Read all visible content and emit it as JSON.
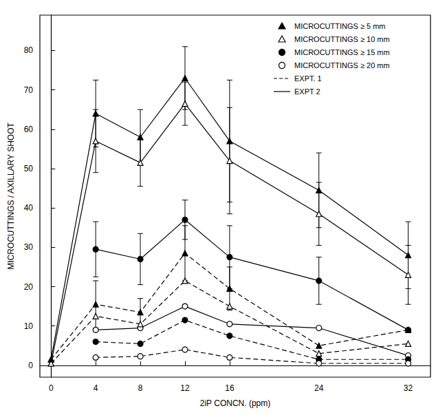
{
  "chart_data": {
    "type": "line",
    "xlabel": "2iP CONCN. (ppm)",
    "ylabel": "MICROCUTTINGS / AXILLARY SHOOT",
    "x": [
      0,
      4,
      8,
      12,
      16,
      24,
      32
    ],
    "xlim": [
      -1,
      34
    ],
    "xticks": [
      0,
      4,
      8,
      12,
      16,
      24,
      32
    ],
    "ylim": [
      -3,
      89
    ],
    "yticks": [
      0,
      10,
      20,
      30,
      40,
      50,
      60,
      70,
      80
    ],
    "grid": false,
    "legend": "upper right",
    "color": "#000000",
    "line_styles": [
      {
        "name": "EXPT. 1",
        "line_style": "dashed"
      },
      {
        "name": "EXPT 2",
        "line_style": "solid"
      }
    ],
    "series": [
      {
        "name": "MICROCUTTINGS ≥ 5 mm",
        "marker": "triangle",
        "line_style": "solid",
        "values": [
          1.5,
          64,
          58,
          73,
          57,
          44.5,
          28
        ],
        "errors": [
          null,
          8.5,
          7,
          8,
          15.5,
          9.5,
          8.5
        ]
      },
      {
        "name": "MICROCUTTINGS ≥ 10 mm",
        "marker": "open_triangle",
        "line_style": "solid",
        "values": [
          0.5,
          57,
          51.5,
          66.5,
          52,
          38.5,
          23
        ],
        "errors": [
          null,
          8,
          6,
          5.5,
          13.5,
          8,
          7.5
        ]
      },
      {
        "name": "MICROCUTTINGS ≥ 15 mm",
        "marker": "circle",
        "line_style": "solid",
        "values": [
          null,
          29.5,
          27,
          37,
          27.5,
          21.5,
          9
        ],
        "errors": [
          null,
          7,
          6.5,
          5,
          8,
          6,
          null
        ]
      },
      {
        "name": "MICROCUTTINGS ≥ 20 mm",
        "marker": "open_circle",
        "line_style": "solid",
        "values": [
          null,
          9,
          9.5,
          15,
          10.5,
          9.5,
          2.5
        ],
        "errors": [
          null,
          null,
          null,
          null,
          null,
          null,
          null
        ]
      },
      {
        "name": "MICROCUTTINGS ≥ 5 mm",
        "marker": "triangle",
        "line_style": "dashed",
        "values": [
          1.5,
          15.5,
          13.5,
          28.5,
          19.5,
          5,
          9
        ],
        "errors": [
          null,
          6,
          3.5,
          7,
          5.5,
          null,
          null
        ]
      },
      {
        "name": "MICROCUTTINGS ≥ 10 mm",
        "marker": "open_triangle",
        "line_style": "dashed",
        "values": [
          0.5,
          12.5,
          10.5,
          21.5,
          15,
          3,
          5.5
        ],
        "errors": [
          null,
          null,
          null,
          null,
          null,
          null,
          null
        ]
      },
      {
        "name": "MICROCUTTINGS ≥ 15 mm",
        "marker": "circle",
        "line_style": "dashed",
        "values": [
          null,
          6,
          5.5,
          11.5,
          7.5,
          1.5,
          1.5
        ],
        "errors": [
          null,
          null,
          null,
          null,
          null,
          null,
          null
        ]
      },
      {
        "name": "MICROCUTTINGS ≥ 20 mm",
        "marker": "open_circle",
        "line_style": "dashed",
        "values": [
          null,
          2,
          2.3,
          4,
          2,
          0.5,
          0.5
        ],
        "errors": [
          null,
          null,
          null,
          null,
          null,
          null,
          null
        ]
      }
    ]
  }
}
